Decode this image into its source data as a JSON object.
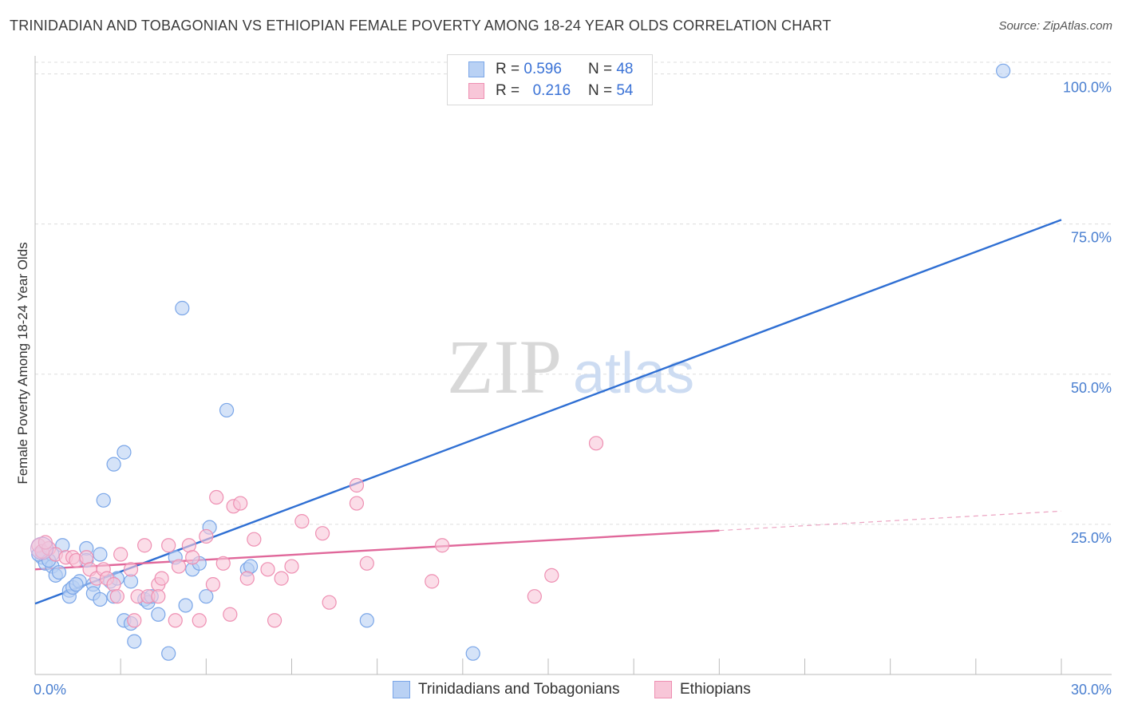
{
  "title": "TRINIDADIAN AND TOBAGONIAN VS ETHIOPIAN FEMALE POVERTY AMONG 18-24 YEAR OLDS CORRELATION CHART",
  "source": "Source: ZipAtlas.com",
  "watermark": {
    "zip": "ZIP",
    "atlas": "atlas"
  },
  "legend": {
    "rows": [
      {
        "r_label": "R =",
        "r_value": "0.596",
        "n_label": "N =",
        "n_value": "48"
      },
      {
        "r_label": "R =",
        "r_value": "0.216",
        "n_label": "N =",
        "n_value": "54"
      }
    ]
  },
  "chart_data": {
    "type": "scatter",
    "title": "TRINIDADIAN AND TOBAGONIAN VS ETHIOPIAN FEMALE POVERTY AMONG 18-24 YEAR OLDS CORRELATION CHART",
    "xlabel": "",
    "ylabel": "Female Poverty Among 18-24 Year Olds",
    "xlim": [
      0,
      30
    ],
    "ylim": [
      0,
      103
    ],
    "x_tick_labels": [
      "0.0%",
      "30.0%"
    ],
    "y_ticks": [
      25,
      50,
      75,
      100
    ],
    "y_tick_labels": [
      "25.0%",
      "50.0%",
      "75.0%",
      "100.0%"
    ],
    "series": [
      {
        "name": "Trinidadians and Tobagonians",
        "color": "#7aa6e8",
        "fill": "#b9d1f4",
        "line_color": "#2f6fd3",
        "trend": {
          "x0": 0,
          "y0": 11.8,
          "x1": 30,
          "y1": 75.7,
          "solid_until": 30
        },
        "points": [
          [
            0.2,
            19.5
          ],
          [
            0.3,
            18.5
          ],
          [
            0.5,
            20.0
          ],
          [
            0.5,
            18.0
          ],
          [
            0.6,
            16.5
          ],
          [
            0.8,
            21.5
          ],
          [
            1.0,
            14.0
          ],
          [
            1.0,
            13.0
          ],
          [
            1.1,
            14.5
          ],
          [
            1.3,
            15.5
          ],
          [
            1.5,
            21.0
          ],
          [
            1.5,
            19.0
          ],
          [
            1.7,
            15.0
          ],
          [
            1.7,
            13.5
          ],
          [
            1.9,
            20.0
          ],
          [
            1.9,
            12.5
          ],
          [
            2.0,
            29.0
          ],
          [
            2.2,
            15.5
          ],
          [
            2.3,
            35.0
          ],
          [
            2.3,
            13.0
          ],
          [
            2.6,
            37.0
          ],
          [
            2.6,
            9.0
          ],
          [
            2.8,
            8.5
          ],
          [
            2.8,
            15.5
          ],
          [
            2.9,
            5.5
          ],
          [
            3.2,
            12.5
          ],
          [
            3.3,
            12.0
          ],
          [
            3.6,
            10.0
          ],
          [
            3.9,
            3.5
          ],
          [
            4.1,
            19.5
          ],
          [
            4.3,
            61.0
          ],
          [
            4.4,
            11.5
          ],
          [
            4.6,
            17.5
          ],
          [
            4.8,
            18.5
          ],
          [
            5.0,
            13.0
          ],
          [
            5.1,
            24.5
          ],
          [
            5.6,
            44.0
          ],
          [
            6.2,
            17.5
          ],
          [
            6.3,
            18.0
          ],
          [
            9.7,
            9.0
          ],
          [
            12.8,
            3.5
          ],
          [
            28.3,
            100.5
          ],
          [
            0.1,
            20.0
          ],
          [
            0.4,
            19.0
          ],
          [
            0.7,
            17.0
          ],
          [
            1.2,
            15.0
          ],
          [
            2.4,
            16.0
          ],
          [
            3.4,
            13.0
          ]
        ]
      },
      {
        "name": "Ethiopians",
        "color": "#ee8fb2",
        "fill": "#f8c6d8",
        "line_color": "#e0679a",
        "trend": {
          "x0": 0,
          "y0": 17.5,
          "x1": 30,
          "y1": 27.2,
          "solid_until": 20
        },
        "points": [
          [
            0.1,
            21.5
          ],
          [
            0.2,
            20.5
          ],
          [
            0.4,
            21.0
          ],
          [
            0.6,
            20.0
          ],
          [
            0.9,
            19.5
          ],
          [
            1.1,
            19.5
          ],
          [
            1.2,
            19.0
          ],
          [
            1.5,
            19.5
          ],
          [
            1.6,
            17.5
          ],
          [
            1.8,
            16.0
          ],
          [
            2.0,
            17.5
          ],
          [
            2.1,
            16.0
          ],
          [
            2.3,
            15.0
          ],
          [
            2.4,
            13.0
          ],
          [
            2.5,
            20.0
          ],
          [
            2.8,
            17.5
          ],
          [
            2.9,
            9.0
          ],
          [
            3.0,
            13.0
          ],
          [
            3.2,
            21.5
          ],
          [
            3.3,
            13.0
          ],
          [
            3.6,
            15.0
          ],
          [
            3.6,
            13.0
          ],
          [
            3.7,
            16.0
          ],
          [
            3.9,
            21.5
          ],
          [
            4.1,
            9.0
          ],
          [
            4.2,
            18.0
          ],
          [
            4.5,
            21.5
          ],
          [
            4.6,
            19.5
          ],
          [
            4.8,
            9.0
          ],
          [
            5.0,
            23.0
          ],
          [
            5.2,
            15.0
          ],
          [
            5.3,
            29.5
          ],
          [
            5.5,
            18.5
          ],
          [
            5.7,
            10.0
          ],
          [
            5.8,
            28.0
          ],
          [
            6.0,
            28.5
          ],
          [
            6.2,
            16.0
          ],
          [
            6.4,
            22.5
          ],
          [
            6.8,
            17.5
          ],
          [
            7.0,
            9.0
          ],
          [
            7.2,
            16.0
          ],
          [
            7.5,
            18.0
          ],
          [
            7.8,
            25.5
          ],
          [
            8.4,
            23.5
          ],
          [
            8.6,
            12.0
          ],
          [
            9.4,
            28.5
          ],
          [
            9.4,
            31.5
          ],
          [
            9.7,
            18.5
          ],
          [
            11.6,
            15.5
          ],
          [
            11.9,
            21.5
          ],
          [
            14.6,
            13.0
          ],
          [
            15.1,
            16.5
          ],
          [
            16.4,
            38.5
          ],
          [
            0.3,
            22.0
          ]
        ]
      }
    ]
  },
  "bottom_legend": [
    "Trinidadians and Tobagonians",
    "Ethiopians"
  ]
}
